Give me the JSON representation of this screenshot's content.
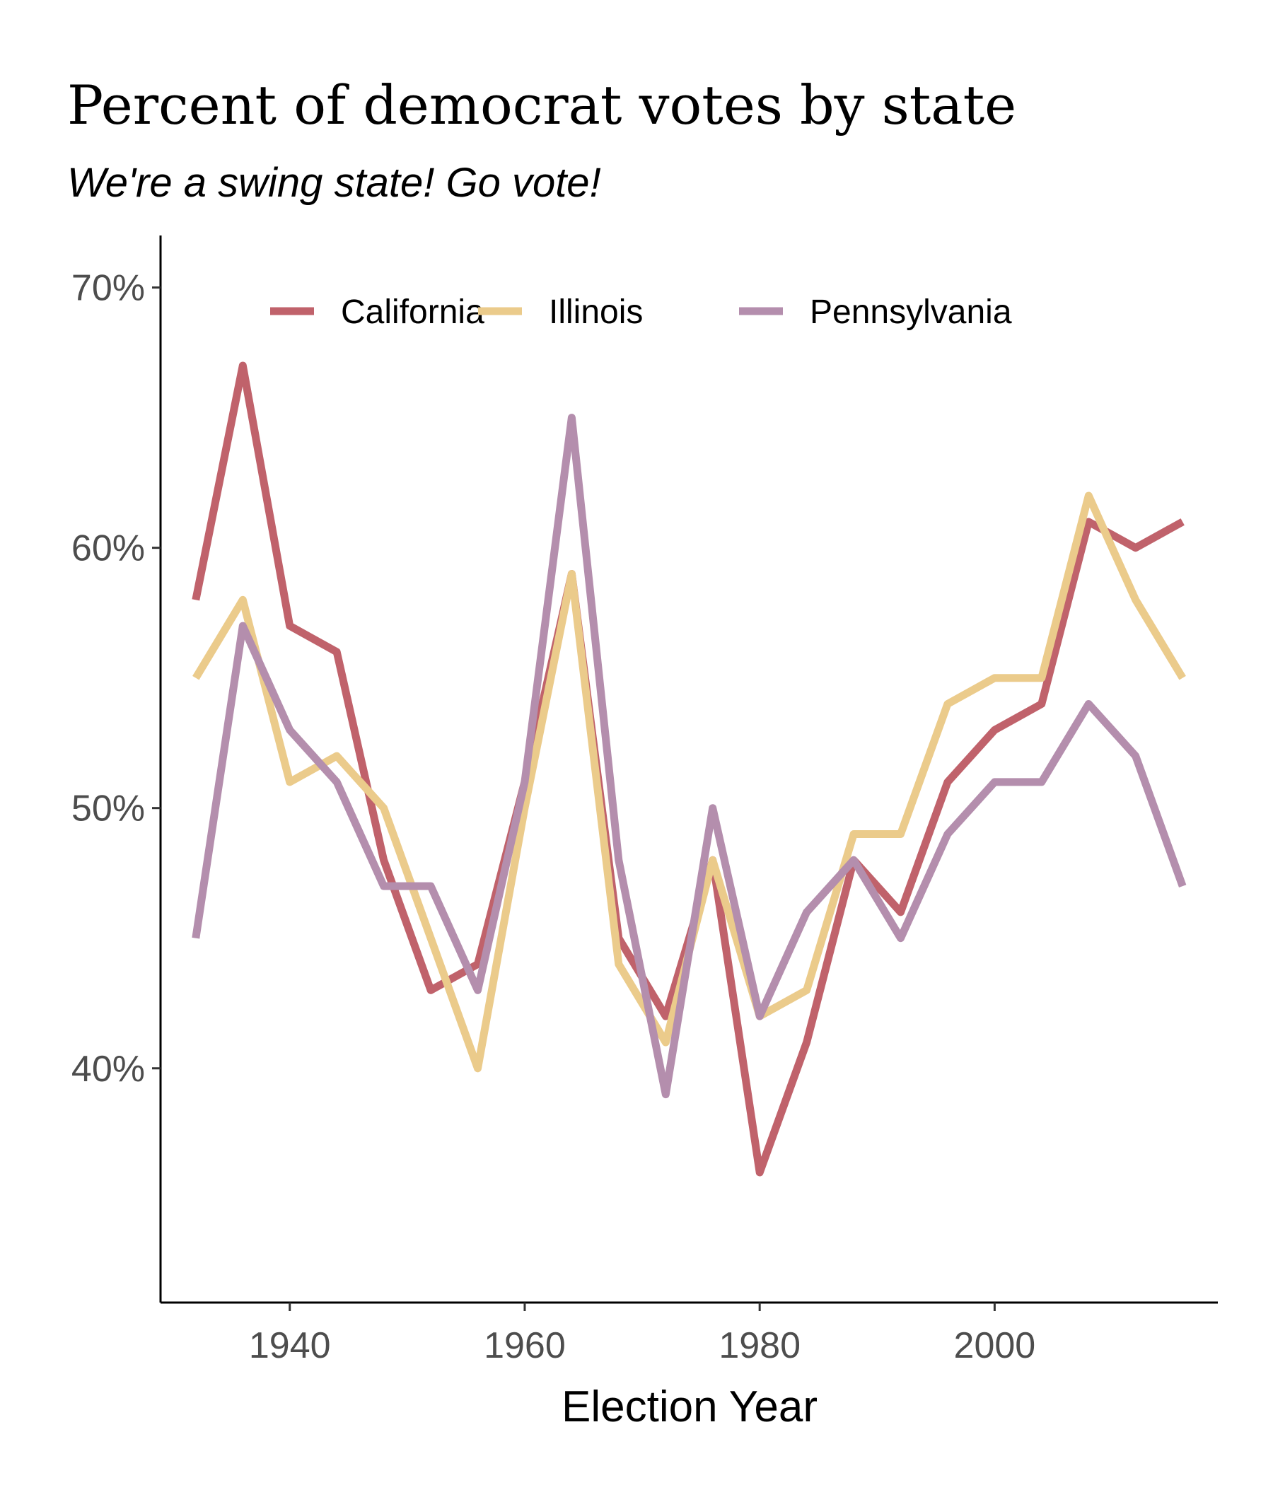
{
  "chart_data": {
    "type": "line",
    "title": "Percent of democrat votes by state",
    "subtitle": "We're a swing state! Go vote!",
    "xlabel": "Election Year",
    "ylabel": "",
    "x": [
      1932,
      1936,
      1940,
      1944,
      1948,
      1952,
      1956,
      1960,
      1964,
      1968,
      1972,
      1976,
      1980,
      1984,
      1988,
      1992,
      1996,
      2000,
      2004,
      2008,
      2012,
      2016
    ],
    "xlim": [
      1929,
      2019
    ],
    "ylim": [
      31,
      72
    ],
    "x_ticks": [
      1940,
      1960,
      1980,
      2000
    ],
    "x_tick_labels": [
      "1940",
      "1960",
      "1980",
      "2000"
    ],
    "y_ticks": [
      40,
      50,
      60,
      70
    ],
    "y_tick_labels": [
      "40%",
      "50%",
      "60%",
      "70%"
    ],
    "grid": false,
    "legend": {
      "position": "top-inside",
      "orientation": "horizontal"
    },
    "series": [
      {
        "name": "California",
        "color": "#c0626b",
        "values": [
          58,
          67,
          57,
          56,
          48,
          43,
          44,
          51,
          59,
          45,
          42,
          48,
          36,
          41,
          48,
          46,
          51,
          53,
          54,
          61,
          60,
          61
        ]
      },
      {
        "name": "Illinois",
        "color": "#ebcb8b",
        "values": [
          55,
          58,
          51,
          52,
          50,
          45,
          40,
          50,
          59,
          44,
          41,
          48,
          42,
          43,
          49,
          49,
          54,
          55,
          55,
          62,
          58,
          55
        ]
      },
      {
        "name": "Pennsylvania",
        "color": "#b48ead",
        "values": [
          45,
          57,
          53,
          51,
          47,
          47,
          43,
          51,
          65,
          48,
          39,
          50,
          42,
          46,
          48,
          45,
          49,
          51,
          51,
          54,
          52,
          47
        ]
      }
    ]
  }
}
